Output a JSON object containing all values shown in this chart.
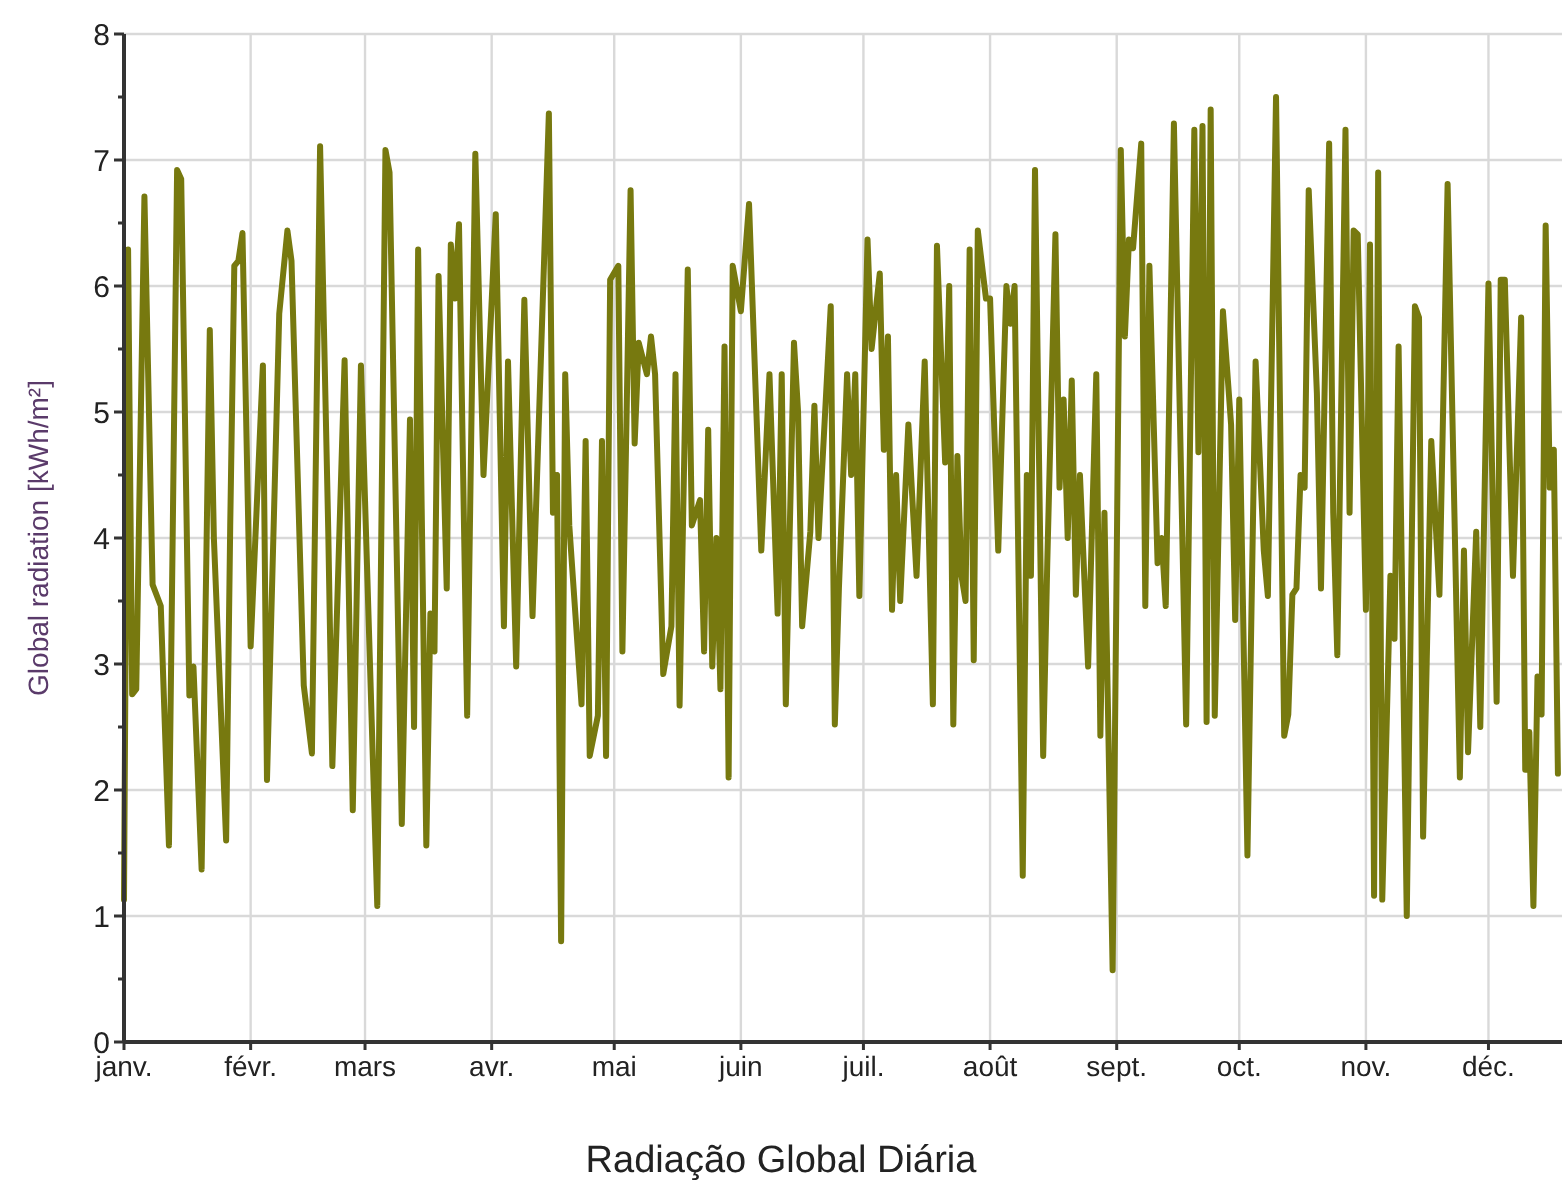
{
  "chart_data": {
    "type": "line",
    "title": "Radiação Global Diária",
    "ylabel": "Global radiation [kWh/m²]",
    "xlim": [
      "--01-01",
      "--12-19"
    ],
    "xticks": [
      {
        "value": "--01-01",
        "label": "janv."
      },
      {
        "value": "--02-01",
        "label": "févr."
      },
      {
        "value": "--03-01",
        "label": "mars"
      },
      {
        "value": "--04-01",
        "label": "avr."
      },
      {
        "value": "--05-01",
        "label": "mai"
      },
      {
        "value": "--06-01",
        "label": "juin"
      },
      {
        "value": "--07-01",
        "label": "juil."
      },
      {
        "value": "--08-01",
        "label": "août"
      },
      {
        "value": "--09-01",
        "label": "sept."
      },
      {
        "value": "--10-01",
        "label": "oct."
      },
      {
        "value": "--11-01",
        "label": "nov."
      },
      {
        "value": "--12-01",
        "label": "déc."
      }
    ],
    "ylim": [
      0,
      8
    ],
    "yticks": [
      0,
      {
        "value": 0.5,
        "label": null
      },
      1,
      {
        "value": 1.5,
        "label": null
      },
      2,
      {
        "value": 2.5,
        "label": null
      },
      3,
      {
        "value": 3.5,
        "label": null
      },
      4,
      {
        "value": 4.5,
        "label": null
      },
      5,
      {
        "value": 5.5,
        "label": null
      },
      6,
      {
        "value": 6.5,
        "label": null
      },
      7,
      {
        "value": 7.5,
        "label": null
      },
      8
    ],
    "grid": true,
    "marker": "none",
    "line_style": "solid",
    "series": [
      {
        "color": "#77790f",
        "x": [
          "--01-01",
          "--01-02",
          "--01-03",
          "--01-04",
          "--01-06",
          "--01-08",
          "--01-10",
          "--01-12",
          "--01-14",
          "--01-15",
          "--01-17",
          "--01-18",
          "--01-20",
          "--01-22",
          "--01-23",
          "--01-26",
          "--01-27",
          "--01-28",
          "--01-29",
          "--01-30",
          "--02-01",
          "--02-04",
          "--02-05",
          "--02-08",
          "--02-10",
          "--02-11",
          "--02-14",
          "--02-16",
          "--02-18",
          "--02-20",
          "--02-21",
          "--02-24",
          "--02-26",
          "--02-28",
          "--03-04",
          "--03-06",
          "--03-07",
          "--03-10",
          "--03-12",
          "--03-13",
          "--03-14",
          "--03-16",
          "--03-17",
          "--03-18",
          "--03-19",
          "--03-21",
          "--03-22",
          "--03-23",
          "--03-24",
          "--03-26",
          "--03-28",
          "--03-30",
          "--04-02",
          "--04-04",
          "--04-05",
          "--04-07",
          "--04-09",
          "--04-11",
          "--04-15",
          "--04-16",
          "--04-17",
          "--04-18",
          "--04-19",
          "--04-20",
          "--04-23",
          "--04-24",
          "--04-25",
          "--04-27",
          "--04-28",
          "--04-29",
          "--04-30",
          "--05-02",
          "--05-03",
          "--05-05",
          "--05-06",
          "--05-07",
          "--05-09",
          "--05-10",
          "--05-11",
          "--05-13",
          "--05-15",
          "--05-16",
          "--05-17",
          "--05-19",
          "--05-20",
          "--05-22",
          "--05-23",
          "--05-24",
          "--05-25",
          "--05-26",
          "--05-27",
          "--05-28",
          "--05-29",
          "--05-30",
          "--06-01",
          "--06-03",
          "--06-06",
          "--06-08",
          "--06-10",
          "--06-11",
          "--06-12",
          "--06-14",
          "--06-15",
          "--06-16",
          "--06-18",
          "--06-19",
          "--06-20",
          "--06-23",
          "--06-24",
          "--06-25",
          "--06-27",
          "--06-28",
          "--06-29",
          "--06-30",
          "--07-02",
          "--07-03",
          "--07-05",
          "--07-06",
          "--07-07",
          "--07-08",
          "--07-09",
          "--07-10",
          "--07-12",
          "--07-14",
          "--07-16",
          "--07-18",
          "--07-19",
          "--07-21",
          "--07-22",
          "--07-23",
          "--07-24",
          "--07-25",
          "--07-26",
          "--07-27",
          "--07-28",
          "--07-29",
          "--07-31",
          "--08-01",
          "--08-03",
          "--08-05",
          "--08-06",
          "--08-07",
          "--08-09",
          "--08-10",
          "--08-11",
          "--08-12",
          "--08-14",
          "--08-15",
          "--08-17",
          "--08-18",
          "--08-19",
          "--08-20",
          "--08-21",
          "--08-22",
          "--08-23",
          "--08-25",
          "--08-27",
          "--08-28",
          "--08-29",
          "--08-31",
          "--09-02",
          "--09-03",
          "--09-04",
          "--09-05",
          "--09-07",
          "--09-08",
          "--09-09",
          "--09-11",
          "--09-12",
          "--09-13",
          "--09-15",
          "--09-18",
          "--09-20",
          "--09-21",
          "--09-22",
          "--09-23",
          "--09-24",
          "--09-25",
          "--09-27",
          "--09-29",
          "--09-30",
          "--10-01",
          "--10-03",
          "--10-05",
          "--10-07",
          "--10-08",
          "--10-10",
          "--10-12",
          "--10-13",
          "--10-14",
          "--10-15",
          "--10-16",
          "--10-17",
          "--10-18",
          "--10-20",
          "--10-21",
          "--10-23",
          "--10-24",
          "--10-25",
          "--10-27",
          "--10-28",
          "--10-29",
          "--10-30",
          "--11-01",
          "--11-02",
          "--11-03",
          "--11-04",
          "--11-05",
          "--11-07",
          "--11-08",
          "--11-09",
          "--11-11",
          "--11-13",
          "--11-14",
          "--11-15",
          "--11-17",
          "--11-19",
          "--11-21",
          "--11-24",
          "--11-25",
          "--11-26",
          "--11-28",
          "--11-29",
          "--12-01",
          "--12-03",
          "--12-04",
          "--12-05",
          "--12-07",
          "--12-09",
          "--12-10",
          "--12-11",
          "--12-12",
          "--12-13",
          "--12-14",
          "--12-15",
          "--12-16",
          "--12-17",
          "--12-18"
        ],
        "values": [
          1.13,
          6.29,
          2.76,
          2.8,
          6.71,
          3.63,
          3.46,
          1.56,
          6.92,
          6.85,
          2.75,
          2.98,
          1.37,
          5.65,
          4.0,
          1.6,
          4.1,
          6.16,
          6.2,
          6.42,
          3.14,
          5.37,
          2.08,
          5.78,
          6.44,
          6.2,
          2.83,
          2.29,
          7.11,
          4.05,
          2.19,
          5.41,
          1.84,
          5.37,
          1.08,
          7.08,
          6.9,
          1.73,
          4.94,
          2.5,
          6.29,
          1.56,
          3.4,
          3.1,
          6.08,
          3.6,
          6.33,
          5.9,
          6.49,
          2.59,
          7.05,
          4.5,
          6.57,
          3.3,
          5.4,
          2.98,
          5.89,
          3.38,
          7.37,
          4.2,
          4.5,
          0.8,
          5.3,
          4.1,
          2.68,
          4.77,
          2.27,
          2.59,
          4.77,
          2.27,
          6.05,
          6.16,
          3.1,
          6.76,
          4.75,
          5.55,
          5.3,
          5.6,
          5.3,
          2.92,
          3.3,
          5.3,
          2.67,
          6.13,
          4.1,
          4.3,
          3.1,
          4.86,
          2.98,
          4.0,
          2.8,
          5.52,
          2.1,
          6.16,
          5.8,
          6.65,
          3.9,
          5.3,
          3.4,
          5.3,
          2.68,
          5.55,
          5.0,
          3.3,
          4.05,
          5.05,
          4.0,
          5.84,
          2.52,
          3.6,
          5.3,
          4.5,
          5.3,
          3.54,
          6.37,
          5.5,
          6.1,
          4.7,
          5.6,
          3.43,
          4.5,
          3.5,
          4.9,
          3.7,
          5.4,
          2.68,
          6.32,
          4.6,
          6.0,
          2.52,
          4.65,
          3.7,
          3.5,
          6.29,
          3.03,
          6.44,
          5.9,
          5.9,
          3.9,
          6.0,
          5.7,
          6.0,
          1.32,
          4.5,
          3.7,
          6.92,
          2.27,
          3.8,
          6.41,
          4.4,
          5.1,
          4.0,
          5.25,
          3.55,
          4.5,
          2.98,
          5.3,
          2.43,
          4.2,
          0.57,
          7.08,
          5.6,
          6.37,
          6.3,
          7.13,
          3.46,
          6.16,
          3.8,
          4.0,
          3.46,
          7.29,
          2.52,
          7.24,
          4.68,
          7.27,
          2.54,
          7.4,
          2.59,
          5.8,
          4.9,
          3.35,
          5.1,
          1.48,
          5.4,
          3.9,
          3.54,
          7.5,
          2.43,
          2.6,
          3.55,
          3.6,
          4.5,
          4.4,
          6.76,
          5.15,
          3.6,
          7.13,
          4.2,
          3.07,
          7.24,
          4.2,
          6.44,
          6.41,
          3.43,
          6.33,
          1.16,
          6.9,
          1.13,
          3.7,
          3.2,
          5.52,
          1.0,
          5.84,
          5.75,
          1.63,
          4.77,
          3.55,
          6.81,
          2.1,
          3.9,
          2.3,
          4.05,
          2.5,
          6.02,
          2.7,
          6.05,
          6.05,
          3.7,
          5.75,
          2.16,
          2.46,
          1.08,
          2.9,
          2.6,
          6.48,
          4.4,
          4.7,
          2.13
        ]
      }
    ]
  }
}
